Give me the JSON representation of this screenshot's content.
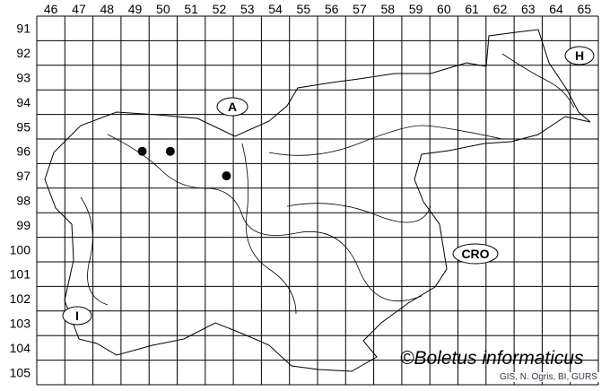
{
  "map": {
    "columns": [
      "46",
      "47",
      "48",
      "49",
      "50",
      "51",
      "52",
      "53",
      "54",
      "55",
      "56",
      "57",
      "58",
      "59",
      "60",
      "61",
      "62",
      "63",
      "64",
      "65"
    ],
    "rows": [
      "91",
      "92",
      "93",
      "94",
      "95",
      "96",
      "97",
      "98",
      "99",
      "100",
      "101",
      "102",
      "103",
      "104",
      "105"
    ],
    "country_labels": [
      {
        "id": "austria",
        "text": "A"
      },
      {
        "id": "hungary",
        "text": "H"
      },
      {
        "id": "croatia",
        "text": "CRO"
      },
      {
        "id": "italy",
        "text": "I"
      }
    ],
    "records": [
      {
        "col": "49",
        "row": "96"
      },
      {
        "col": "50",
        "row": "96"
      },
      {
        "col": "52",
        "row": "97"
      }
    ],
    "watermark": "©Boletus informaticus",
    "credit": "GIS, N. Ogris, BI, GURS",
    "colors": {
      "lines": "#000000",
      "background": "#ffffff",
      "dots": "#000000"
    }
  }
}
